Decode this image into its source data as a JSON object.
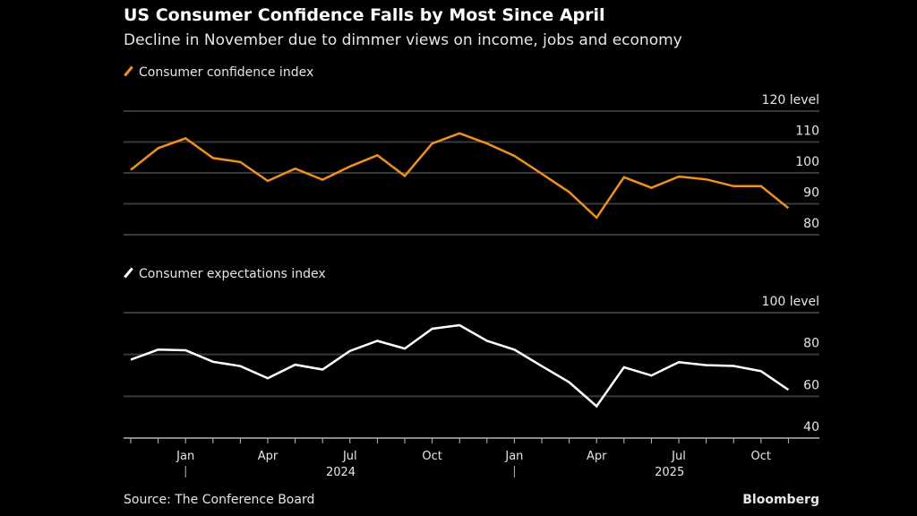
{
  "header": {
    "title": "US Consumer Confidence Falls by Most Since April",
    "subtitle": "Decline in November due to dimmer views on income, jobs and economy"
  },
  "footer": {
    "source": "Source: The Conference Board",
    "brand": "Bloomberg"
  },
  "colors": {
    "confidence": "#f0901e",
    "expectations": "#ffffff",
    "grid": "#3a3a3a",
    "background": "#000000"
  },
  "chart_data": [
    {
      "type": "line",
      "title": "Consumer confidence index",
      "legend": "Consumer confidence index",
      "unit_label": "level",
      "x": [
        "2023-11",
        "2023-12",
        "2024-01",
        "2024-02",
        "2024-03",
        "2024-04",
        "2024-05",
        "2024-06",
        "2024-07",
        "2024-08",
        "2024-09",
        "2024-10",
        "2024-11",
        "2024-12",
        "2025-01",
        "2025-02",
        "2025-03",
        "2025-04",
        "2025-05",
        "2025-06",
        "2025-07",
        "2025-08",
        "2025-09",
        "2025-10",
        "2025-11"
      ],
      "values": [
        101.0,
        108.0,
        111.2,
        104.8,
        103.5,
        97.4,
        101.4,
        97.8,
        102.1,
        105.7,
        99.0,
        109.5,
        112.8,
        109.5,
        105.5,
        99.7,
        93.8,
        85.5,
        98.6,
        95.2,
        98.8,
        97.9,
        95.7,
        95.7,
        88.6
      ],
      "ylim": [
        80,
        120
      ],
      "yticks": [
        "120",
        "110",
        "100",
        "90",
        "80"
      ],
      "grid": true
    },
    {
      "type": "line",
      "title": "Consumer expectations index",
      "legend": "Consumer expectations index",
      "unit_label": "level",
      "x": [
        "2023-11",
        "2023-12",
        "2024-01",
        "2024-02",
        "2024-03",
        "2024-04",
        "2024-05",
        "2024-06",
        "2024-07",
        "2024-08",
        "2024-09",
        "2024-10",
        "2024-11",
        "2024-12",
        "2025-01",
        "2025-02",
        "2025-03",
        "2025-04",
        "2025-05",
        "2025-06",
        "2025-07",
        "2025-08",
        "2025-09",
        "2025-10",
        "2025-11"
      ],
      "values": [
        77.5,
        82.3,
        82.0,
        76.5,
        74.4,
        68.6,
        75.1,
        72.8,
        81.7,
        86.5,
        82.8,
        92.3,
        94.0,
        86.5,
        82.3,
        74.4,
        66.7,
        55.2,
        73.9,
        69.9,
        76.3,
        74.9,
        74.5,
        72.0,
        63.1
      ],
      "ylim": [
        40,
        100
      ],
      "yticks": [
        "100",
        "80",
        "60",
        "40"
      ],
      "grid": true
    }
  ],
  "xaxis": {
    "month_labels": [
      {
        "label": "Jan",
        "i": 2
      },
      {
        "label": "Apr",
        "i": 5
      },
      {
        "label": "Jul",
        "i": 8
      },
      {
        "label": "Oct",
        "i": 11
      },
      {
        "label": "Jan",
        "i": 14
      },
      {
        "label": "Apr",
        "i": 17
      },
      {
        "label": "Jul",
        "i": 20
      },
      {
        "label": "Oct",
        "i": 23
      }
    ],
    "years": [
      {
        "label": "2024",
        "i": 7.5
      },
      {
        "label": "2025",
        "i": 19.5
      }
    ],
    "year_dividers": [
      2,
      14
    ]
  }
}
